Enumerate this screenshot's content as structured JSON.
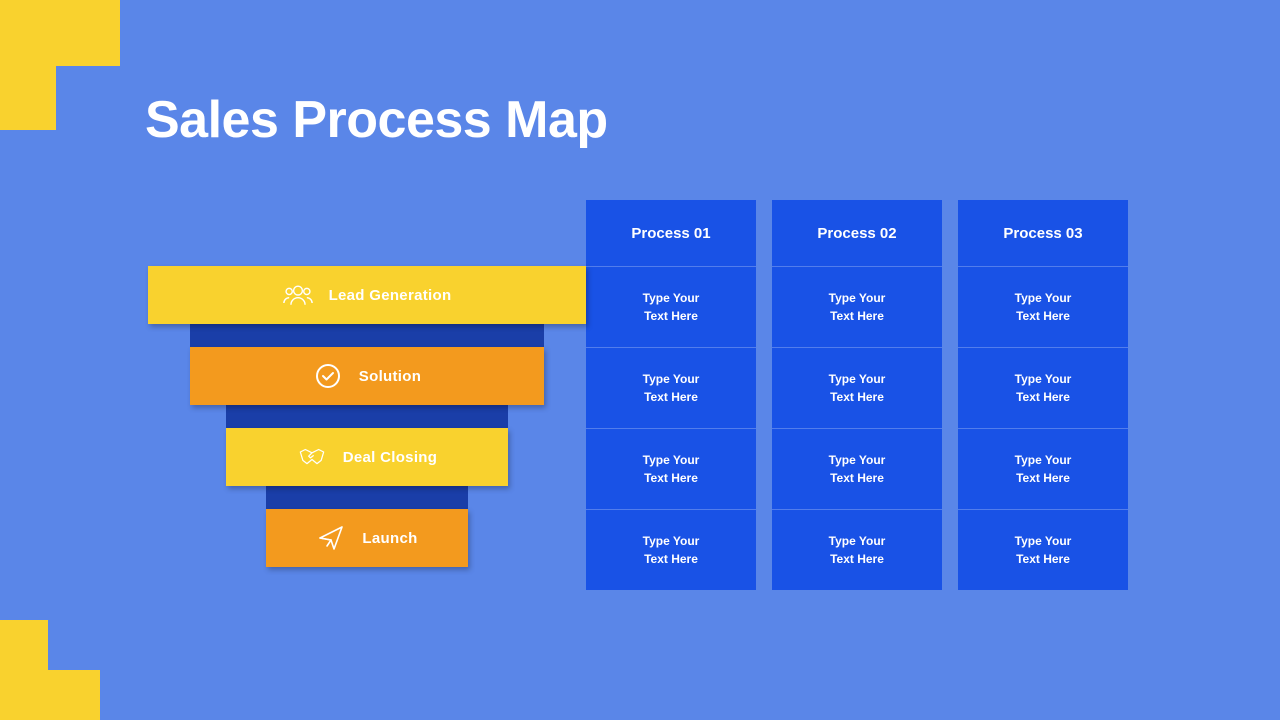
{
  "title": "Sales Process Map",
  "colors": {
    "background": "#5a86e8",
    "accent_yellow": "#f9d22e",
    "cell_blue": "#1952e6",
    "connector_blue": "#1a3ea8",
    "stage_yellow": "#f9d22e",
    "stage_orange": "#f39a1e",
    "text_white": "#ffffff"
  },
  "layout": {
    "funnel_widths": [
      438,
      354,
      282,
      202
    ],
    "connector_offsets": [
      42,
      36,
      40
    ]
  },
  "processes": {
    "headers": [
      "Process 01",
      "Process 02",
      "Process 03"
    ],
    "placeholder_line1": "Type Your",
    "placeholder_line2": "Text Here"
  },
  "stages": [
    {
      "label": "Lead Generation",
      "icon": "people",
      "color_key": "stage_yellow"
    },
    {
      "label": "Solution",
      "icon": "check",
      "color_key": "stage_orange"
    },
    {
      "label": "Deal Closing",
      "icon": "handshake",
      "color_key": "stage_yellow"
    },
    {
      "label": "Launch",
      "icon": "plane",
      "color_key": "stage_orange"
    }
  ]
}
